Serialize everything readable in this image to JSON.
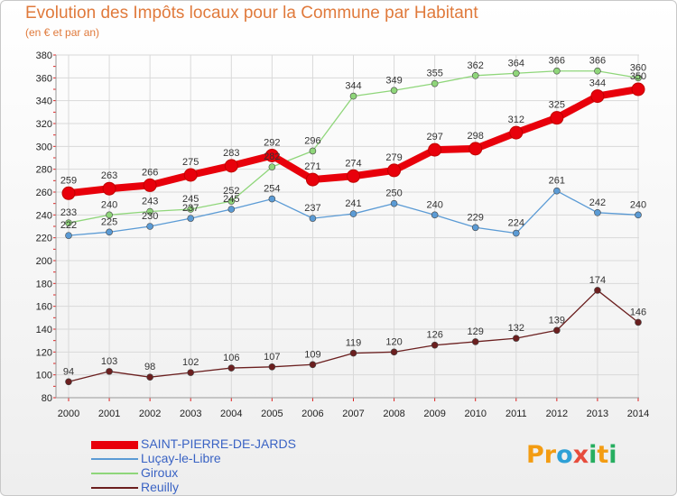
{
  "header": {
    "title": "Evolution des Impôts locaux pour la Commune par Habitant",
    "subtitle": "(en € et par an)"
  },
  "logo": {
    "text": "Proxiti",
    "letters": [
      "P",
      "r",
      "o",
      "x",
      "i",
      "t",
      "i"
    ],
    "colors": [
      "#f39c12",
      "#f39c12",
      "#2ea0d6",
      "#e74c3c",
      "#27ae60",
      "#f39c12",
      "#27ae60"
    ]
  },
  "chart_data": {
    "type": "line",
    "title": "Evolution des Impôts locaux pour la Commune par Habitant",
    "subtitle": "(en € et par an)",
    "x": [
      "2000",
      "2001",
      "2002",
      "2003",
      "2004",
      "2005",
      "2006",
      "2007",
      "2008",
      "2009",
      "2010",
      "2011",
      "2012",
      "2013",
      "2014"
    ],
    "ylim": [
      80,
      380
    ],
    "yticks": [
      80,
      100,
      120,
      140,
      160,
      180,
      200,
      220,
      240,
      260,
      280,
      300,
      320,
      340,
      360,
      380
    ],
    "grid": true,
    "legend_position": "bottom-left",
    "series": [
      {
        "name": "SAINT-PIERRE-DE-JARDS",
        "color": "#e8000b",
        "values": [
          259,
          263,
          266,
          275,
          283,
          292,
          271,
          274,
          279,
          297,
          298,
          312,
          325,
          344,
          350
        ]
      },
      {
        "name": "Luçay-le-Libre",
        "color": "#5b9bd5",
        "values": [
          222,
          225,
          230,
          237,
          245,
          254,
          237,
          241,
          250,
          240,
          229,
          224,
          261,
          242,
          240
        ]
      },
      {
        "name": "Giroux",
        "color": "#8fd67a",
        "values": [
          233,
          240,
          243,
          245,
          252,
          282,
          296,
          344,
          349,
          355,
          362,
          364,
          366,
          366,
          360
        ]
      },
      {
        "name": "Reuilly",
        "color": "#6b1f1f",
        "values": [
          94,
          103,
          98,
          102,
          106,
          107,
          109,
          119,
          120,
          126,
          129,
          132,
          139,
          174,
          146
        ]
      }
    ]
  }
}
